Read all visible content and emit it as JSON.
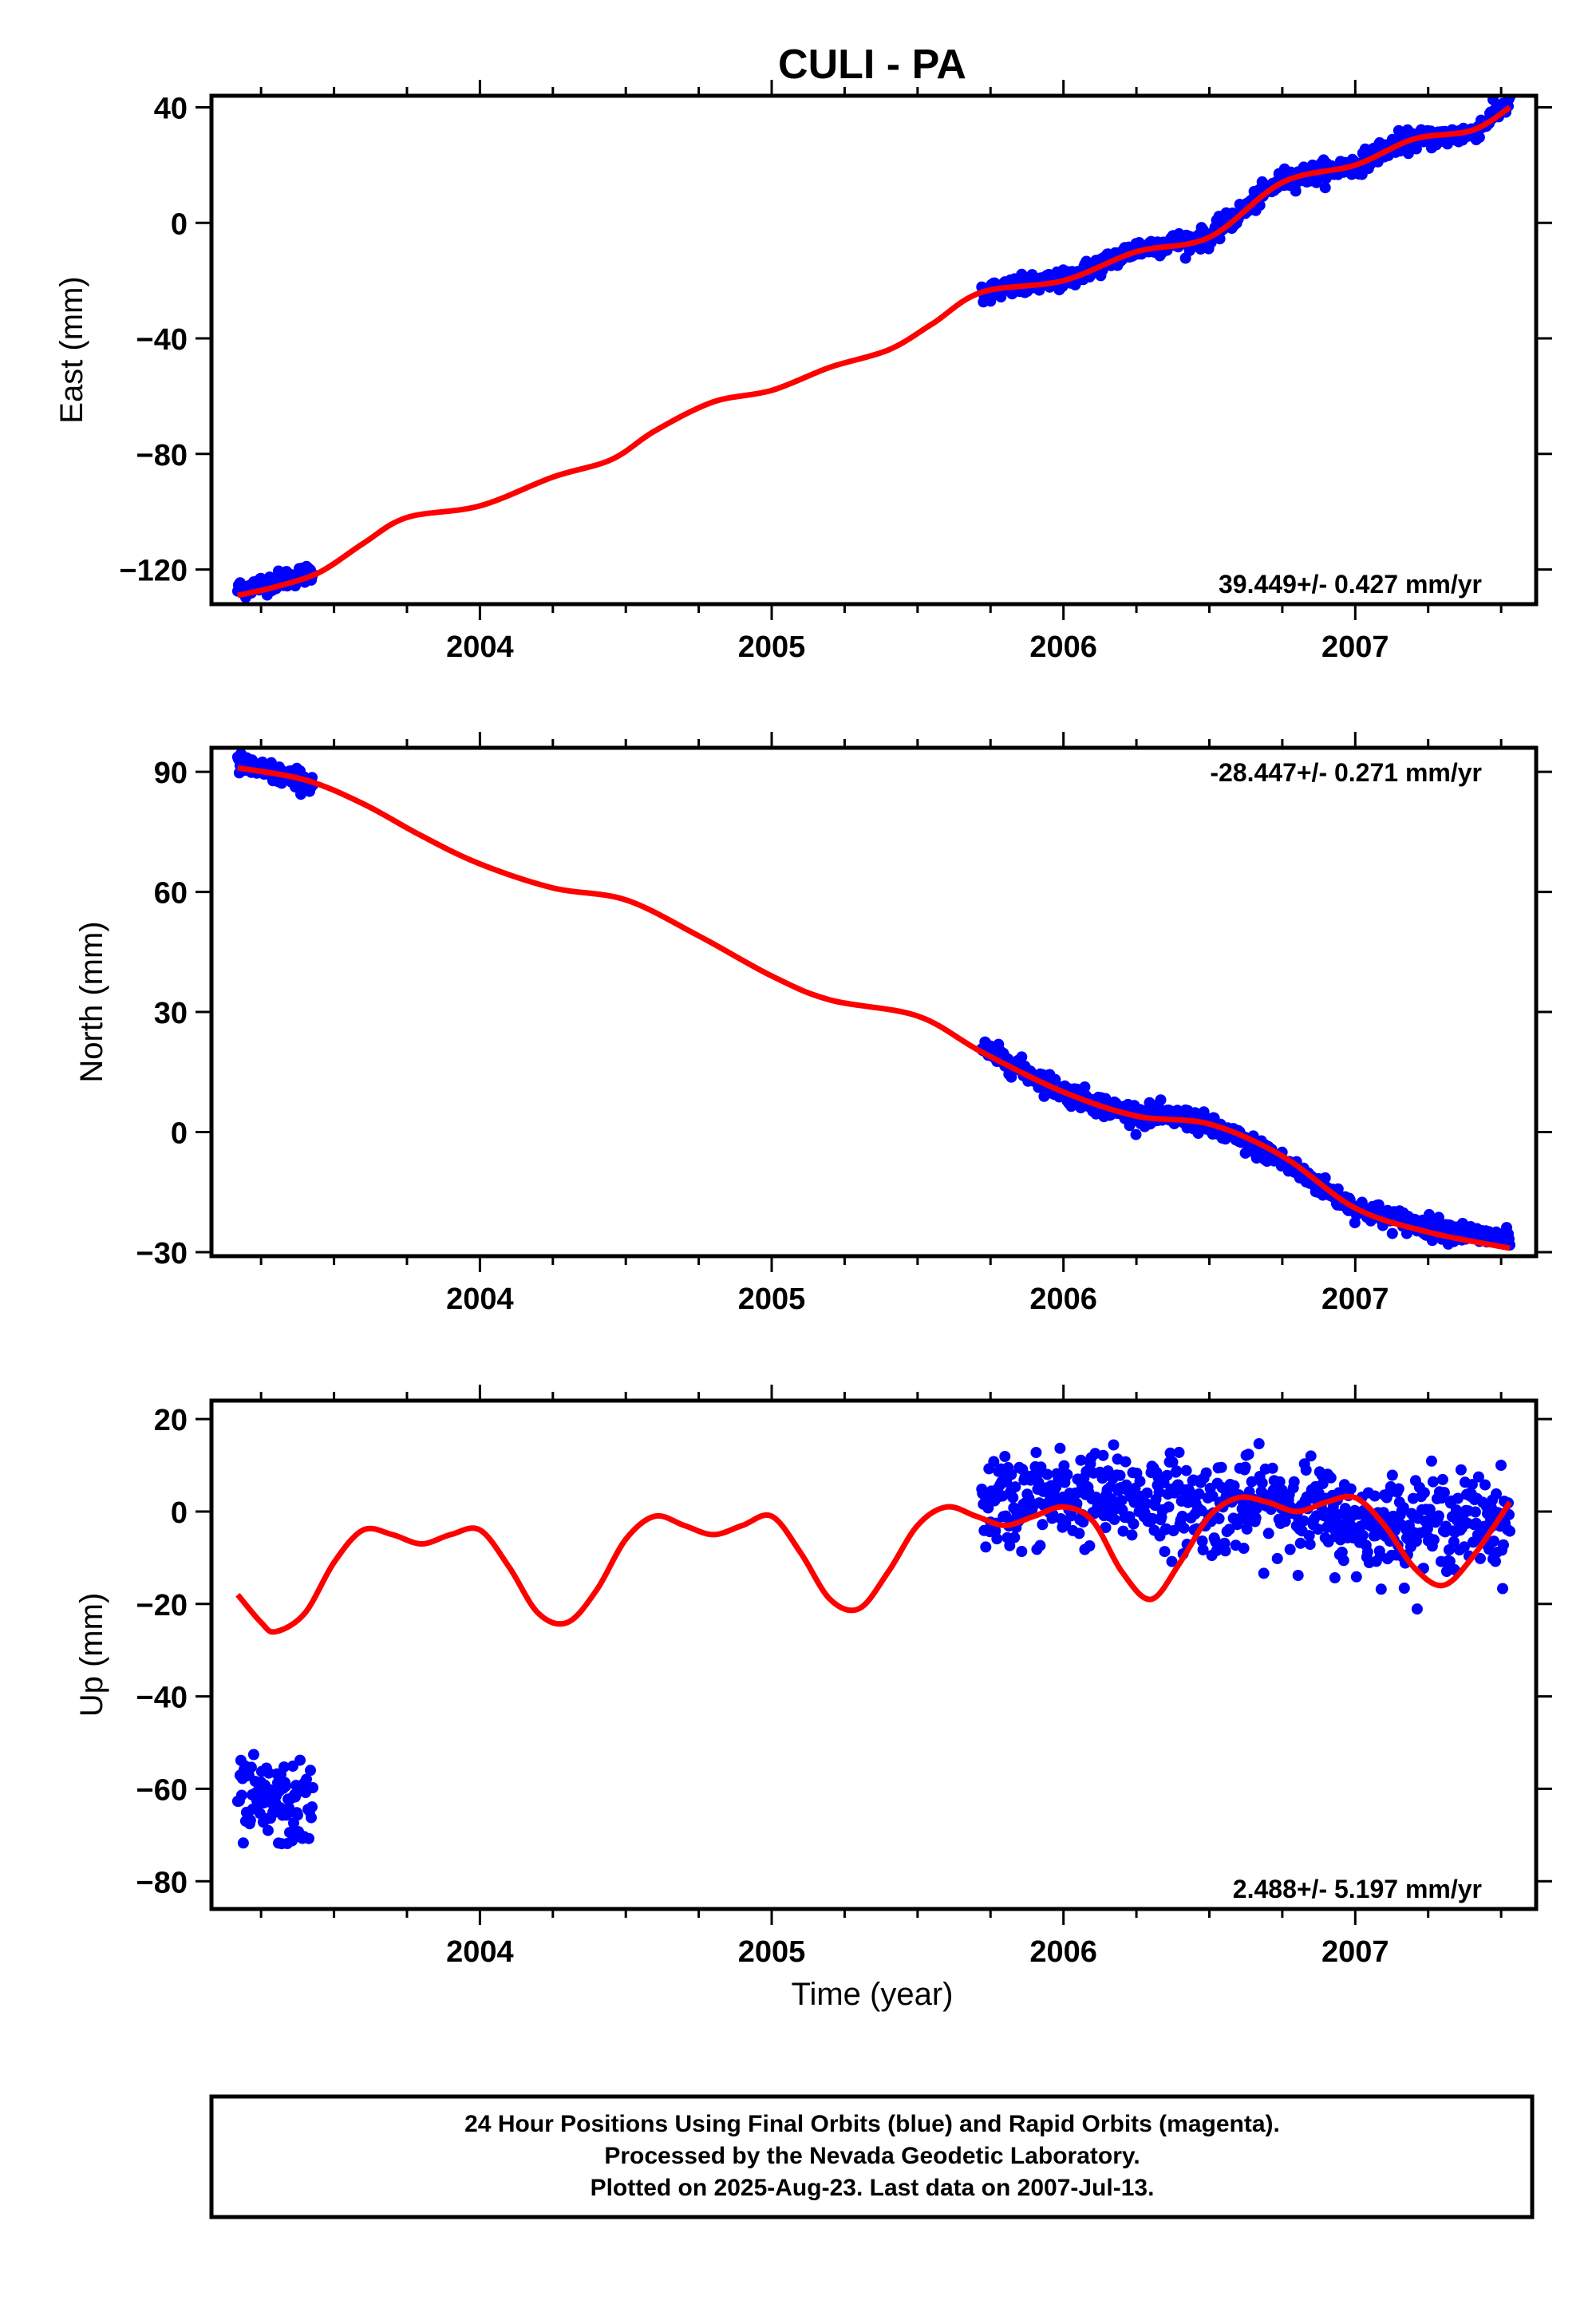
{
  "title": "CULI - PA",
  "xlabel": "Time (year)",
  "colors": {
    "final_orbits": "#0000ff",
    "model": "#ff0000",
    "frame": "#000000"
  },
  "footer": {
    "line1": "24 Hour Positions Using Final Orbits (blue) and Rapid Orbits (magenta).",
    "line2": "Processed by the Nevada Geodetic Laboratory.",
    "line3": "Plotted on 2025-Aug-23. Last data on 2007-Jul-13."
  },
  "chart_data": [
    {
      "type": "scatter",
      "ylabel": "East (mm)",
      "xlim": [
        2003.08,
        2007.62
      ],
      "ylim": [
        -132,
        44
      ],
      "xticks": [
        2004,
        2005,
        2006,
        2007
      ],
      "yticks": [
        -120,
        -80,
        -40,
        0,
        40
      ],
      "rate_label": "39.449+/- 0.427 mm/yr",
      "rate_position": "bottom-right",
      "series": [
        {
          "style": "points",
          "color": "#0000ff",
          "segments": [
            {
              "x_start": 2003.17,
              "x_end": 2003.43,
              "trend": [
                [
                  2003.17,
                  -127
                ],
                [
                  2003.43,
                  -121
                ]
              ],
              "scatter": 1.6
            },
            {
              "x_start": 2005.72,
              "x_end": 2007.53,
              "trend": [
                [
                  2005.72,
                  -24
                ],
                [
                  2006.0,
                  -20
                ],
                [
                  2006.25,
                  -9
                ],
                [
                  2006.5,
                  -5
                ],
                [
                  2006.75,
                  15
                ],
                [
                  2007.0,
                  20
                ],
                [
                  2007.15,
                  28
                ],
                [
                  2007.4,
                  31
                ],
                [
                  2007.53,
                  42
                ]
              ],
              "scatter": 1.7
            }
          ]
        },
        {
          "style": "line",
          "color": "#ff0000",
          "x": [
            2003.17,
            2003.3,
            2003.45,
            2003.6,
            2003.75,
            2004.0,
            2004.25,
            2004.45,
            2004.6,
            2004.8,
            2005.0,
            2005.2,
            2005.4,
            2005.55,
            2005.72,
            2006.0,
            2006.25,
            2006.5,
            2006.75,
            2007.0,
            2007.2,
            2007.4,
            2007.53
          ],
          "y": [
            -129,
            -126,
            -121,
            -111,
            -102,
            -98,
            -88,
            -82,
            -72,
            -62,
            -58,
            -50,
            -44,
            -35,
            -24,
            -20,
            -10,
            -5,
            14,
            20,
            29,
            32,
            40
          ]
        }
      ]
    },
    {
      "type": "scatter",
      "ylabel": "North (mm)",
      "xlim": [
        2003.08,
        2007.62
      ],
      "ylim": [
        -31,
        96
      ],
      "xticks": [
        2004,
        2005,
        2006,
        2007
      ],
      "yticks": [
        -30,
        0,
        30,
        60,
        90
      ],
      "rate_label": "-28.447+/- 0.271 mm/yr",
      "rate_position": "top-right",
      "series": [
        {
          "style": "points",
          "color": "#0000ff",
          "segments": [
            {
              "x_start": 2003.17,
              "x_end": 2003.43,
              "trend": [
                [
                  2003.17,
                  92
                ],
                [
                  2003.43,
                  87
                ]
              ],
              "scatter": 1.3
            },
            {
              "x_start": 2005.72,
              "x_end": 2007.53,
              "trend": [
                [
                  2005.72,
                  21
                ],
                [
                  2006.0,
                  10
                ],
                [
                  2006.2,
                  5
                ],
                [
                  2006.45,
                  3
                ],
                [
                  2006.7,
                  -5
                ],
                [
                  2007.0,
                  -19
                ],
                [
                  2007.2,
                  -23
                ],
                [
                  2007.35,
                  -25
                ],
                [
                  2007.53,
                  -27
                ]
              ],
              "scatter": 1.3
            }
          ]
        },
        {
          "style": "line",
          "color": "#ff0000",
          "x": [
            2003.17,
            2003.4,
            2003.6,
            2003.8,
            2004.0,
            2004.25,
            2004.5,
            2004.75,
            2005.0,
            2005.2,
            2005.5,
            2005.72,
            2006.0,
            2006.25,
            2006.5,
            2006.75,
            2007.0,
            2007.25,
            2007.53
          ],
          "y": [
            91,
            88,
            82,
            74,
            67,
            61,
            58,
            49,
            39,
            33,
            29,
            20,
            10,
            4,
            2,
            -6,
            -19,
            -25,
            -29
          ]
        }
      ]
    },
    {
      "type": "scatter",
      "ylabel": "Up (mm)",
      "xlim": [
        2003.08,
        2007.62
      ],
      "ylim": [
        -86,
        24
      ],
      "xticks": [
        2004,
        2005,
        2006,
        2007
      ],
      "yticks": [
        -80,
        -60,
        -40,
        -20,
        0,
        20
      ],
      "rate_label": "2.488+/- 5.197 mm/yr",
      "rate_position": "bottom-right",
      "series": [
        {
          "style": "points",
          "color": "#0000ff",
          "segments": [
            {
              "x_start": 2003.17,
              "x_end": 2003.43,
              "trend": [
                [
                  2003.17,
                  -63
                ],
                [
                  2003.43,
                  -64
                ]
              ],
              "scatter": 4.5
            },
            {
              "x_start": 2005.72,
              "x_end": 2007.53,
              "trend": [
                [
                  2005.72,
                  2
                ],
                [
                  2006.0,
                  3
                ],
                [
                  2006.3,
                  3
                ],
                [
                  2006.5,
                  1
                ],
                [
                  2006.8,
                  2
                ],
                [
                  2007.0,
                  -3
                ],
                [
                  2007.3,
                  -2
                ],
                [
                  2007.53,
                  -2
                ]
              ],
              "scatter": 5.0
            }
          ]
        },
        {
          "style": "line",
          "color": "#ff0000",
          "x": [
            2003.17,
            2003.25,
            2003.3,
            2003.4,
            2003.5,
            2003.6,
            2003.7,
            2003.8,
            2003.9,
            2004.0,
            2004.1,
            2004.2,
            2004.3,
            2004.4,
            2004.5,
            2004.6,
            2004.7,
            2004.8,
            2004.9,
            2005.0,
            2005.1,
            2005.2,
            2005.3,
            2005.4,
            2005.5,
            2005.6,
            2005.7,
            2005.8,
            2005.9,
            2006.0,
            2006.1,
            2006.2,
            2006.3,
            2006.4,
            2006.5,
            2006.6,
            2006.7,
            2006.8,
            2006.9,
            2007.0,
            2007.1,
            2007.2,
            2007.3,
            2007.4,
            2007.53
          ],
          "y": [
            -18,
            -24,
            -26,
            -22,
            -11,
            -4,
            -5,
            -7,
            -5,
            -4,
            -12,
            -22,
            -24,
            -17,
            -6,
            -1,
            -3,
            -5,
            -3,
            -1,
            -9,
            -19,
            -21,
            -13,
            -3,
            1,
            -1,
            -3,
            -1,
            1,
            -2,
            -13,
            -19,
            -11,
            -1,
            3,
            2,
            0,
            2,
            3,
            -3,
            -12,
            -16,
            -10,
            2
          ]
        }
      ]
    }
  ]
}
